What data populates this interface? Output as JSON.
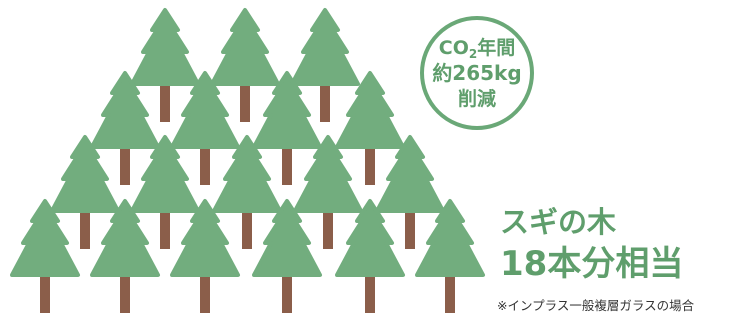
{
  "circle": {
    "line1": {
      "main": "CO",
      "sub": "2",
      "rest": "年間"
    },
    "line2": "約265kg",
    "line3": "削減"
  },
  "headline": {
    "line1": "スギの木",
    "line2": "18本分相当"
  },
  "note": "※インプラス一般複層ガラスの場合"
}
